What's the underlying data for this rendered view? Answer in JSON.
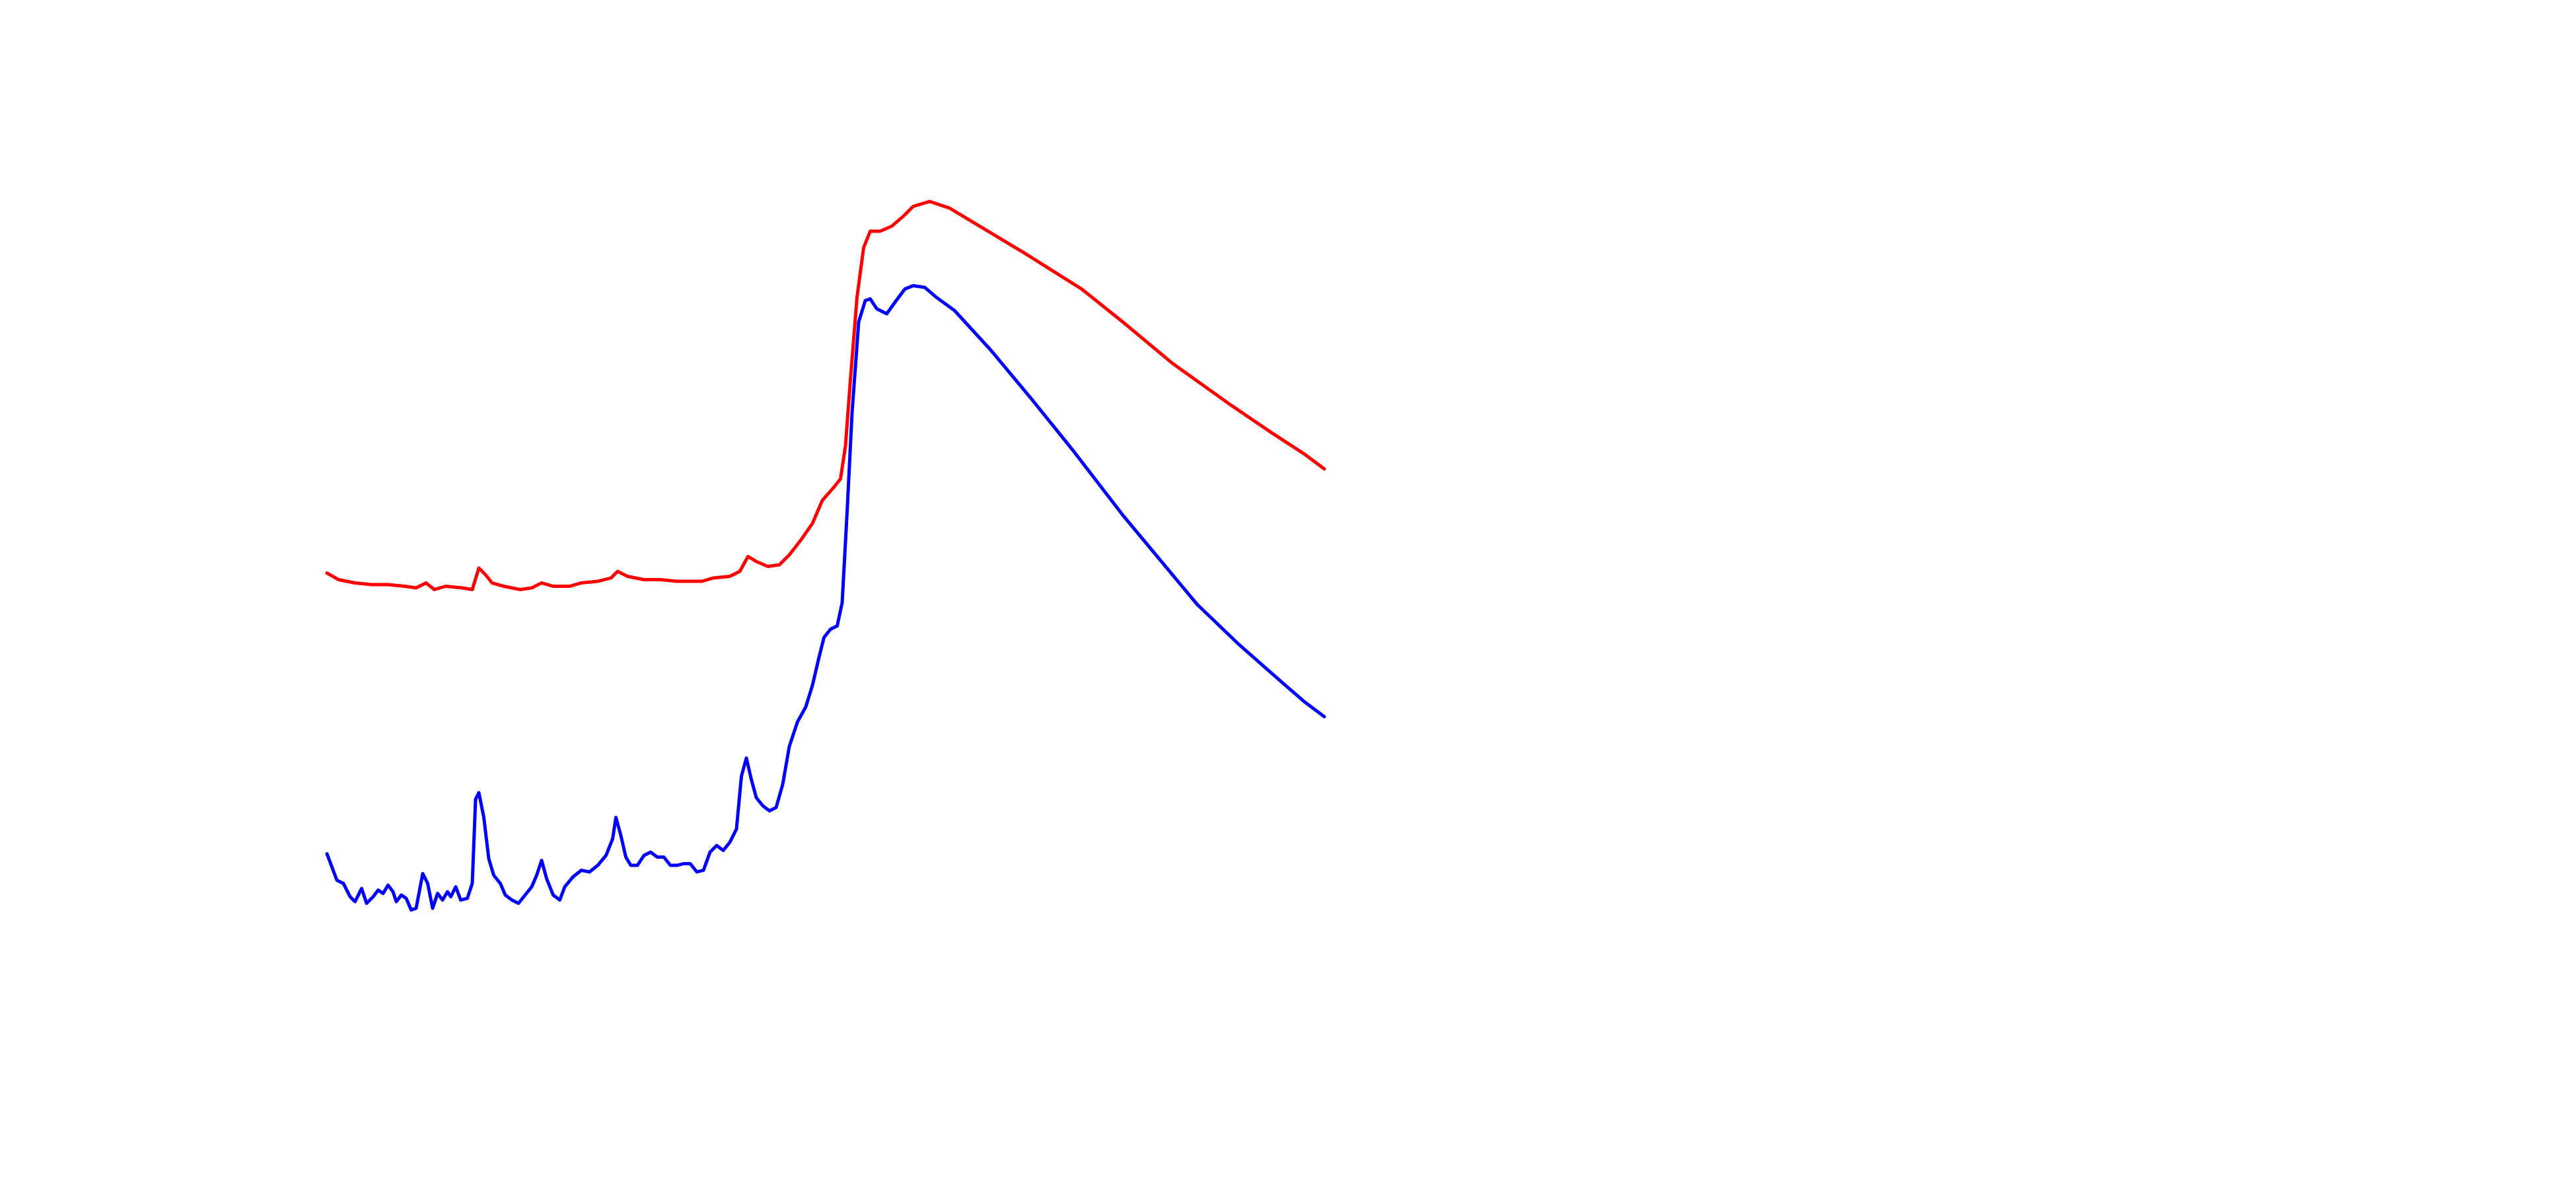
{
  "chart_data": {
    "type": "line",
    "xlim": [
      0,
      604
    ],
    "ylim": [
      0,
      440
    ],
    "series": [
      {
        "color": "#ff0000",
        "x": [
          0,
          7,
          17,
          27,
          37,
          47,
          54,
          60,
          65,
          72,
          82,
          88,
          92,
          96,
          100,
          107,
          117,
          124,
          130,
          137,
          147,
          154,
          164,
          172,
          176,
          182,
          192,
          202,
          212,
          227,
          234,
          244,
          250,
          255,
          260,
          267,
          274,
          280,
          287,
          294,
          300,
          307,
          311,
          314,
          317,
          321,
          325,
          329,
          335,
          342,
          349,
          355,
          365,
          377,
          392,
          422,
          457,
          482,
          512,
          547,
          572,
          592,
          604
        ],
        "values": [
          213,
          209,
          207,
          206,
          206,
          205,
          204,
          207,
          203,
          205,
          204,
          203,
          216,
          212,
          207,
          205,
          203,
          204,
          207,
          205,
          205,
          207,
          208,
          210,
          214,
          211,
          209,
          209,
          208,
          208,
          210,
          211,
          214,
          223,
          220,
          217,
          218,
          224,
          233,
          243,
          257,
          265,
          270,
          290,
          330,
          380,
          410,
          420,
          420,
          423,
          429,
          435,
          438,
          434,
          425,
          407,
          385,
          365,
          340,
          315,
          298,
          285,
          276
        ]
      },
      {
        "color": "#0000ff",
        "x": [
          0,
          3,
          6,
          10,
          14,
          17,
          21,
          24,
          28,
          31,
          34,
          37,
          40,
          42,
          45,
          48,
          51,
          54,
          58,
          61,
          64,
          67,
          70,
          73,
          75,
          78,
          81,
          85,
          88,
          90,
          92,
          95,
          98,
          101,
          105,
          108,
          112,
          116,
          120,
          124,
          127,
          130,
          133,
          137,
          141,
          144,
          149,
          154,
          159,
          164,
          169,
          173,
          175,
          178,
          181,
          184,
          188,
          192,
          196,
          200,
          204,
          208,
          212,
          216,
          220,
          224,
          228,
          232,
          236,
          240,
          244,
          248,
          251,
          254,
          257,
          260,
          264,
          268,
          272,
          276,
          280,
          285,
          290,
          294,
          298,
          301,
          305,
          309,
          312,
          315,
          318,
          322,
          326,
          329,
          333,
          339,
          344,
          350,
          355,
          362,
          369,
          380,
          402,
          427,
          452,
          482,
          502,
          527,
          552,
          577,
          592,
          604
        ],
        "values": [
          43,
          35,
          27,
          25,
          17,
          14,
          22,
          13,
          17,
          21,
          19,
          24,
          20,
          14,
          18,
          16,
          9,
          10,
          31,
          25,
          10,
          19,
          15,
          20,
          17,
          23,
          15,
          16,
          25,
          76,
          80,
          65,
          40,
          30,
          25,
          18,
          15,
          13,
          18,
          23,
          30,
          39,
          28,
          18,
          15,
          23,
          29,
          33,
          32,
          36,
          42,
          52,
          65,
          54,
          41,
          36,
          36,
          42,
          44,
          41,
          41,
          36,
          36,
          37,
          37,
          32,
          33,
          44,
          48,
          45,
          50,
          58,
          90,
          101,
          88,
          77,
          72,
          69,
          71,
          85,
          108,
          123,
          132,
          145,
          162,
          174,
          179,
          181,
          195,
          250,
          310,
          365,
          378,
          379,
          373,
          370,
          377,
          385,
          387,
          386,
          380,
          372,
          348,
          318,
          287,
          248,
          224,
          194,
          170,
          148,
          135,
          126
        ]
      }
    ]
  }
}
